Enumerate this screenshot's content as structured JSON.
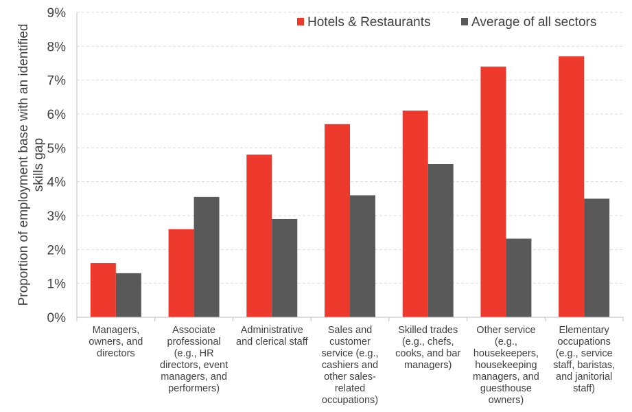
{
  "chart_data": {
    "type": "bar",
    "title": "",
    "ylabel": "Proportion of employment base with an identified skills gap",
    "ylabel_lines": [
      "Proportion of employment base with an identified",
      "skills gap"
    ],
    "xlabel": "",
    "ylim": [
      0,
      9
    ],
    "y_ticks": [
      "0%",
      "1%",
      "2%",
      "3%",
      "4%",
      "5%",
      "6%",
      "7%",
      "8%",
      "9%"
    ],
    "y_tick_values": [
      0,
      1,
      2,
      3,
      4,
      5,
      6,
      7,
      8,
      9
    ],
    "grid": true,
    "legend_position": "top-right",
    "categories": [
      [
        "Managers,",
        "owners, and",
        "directors"
      ],
      [
        "Associate",
        "professional",
        "(e.g., HR",
        "directors, event",
        "managers, and",
        "performers)"
      ],
      [
        "Administrative",
        "and clerical staff"
      ],
      [
        "Sales and",
        "customer",
        "service (e.g.,",
        "cashiers and",
        "other sales-",
        "related",
        "occupations)"
      ],
      [
        "Skilled trades",
        "(e.g., chefs,",
        "cooks, and bar",
        "managers)"
      ],
      [
        "Other service",
        "(e.g.,",
        "housekeepers,",
        "housekeeping",
        "managers, and",
        "guesthouse",
        "owners)"
      ],
      [
        "Elementary",
        "occupations",
        "(e.g., service",
        "staff, baristas,",
        "and janitorial",
        "staff)"
      ]
    ],
    "series": [
      {
        "name": "Hotels & Restaurants",
        "color": "#ee3a2d",
        "values": [
          1.6,
          2.6,
          4.8,
          5.7,
          6.1,
          7.4,
          7.7
        ]
      },
      {
        "name": "Average of all sectors",
        "color": "#595959",
        "values": [
          1.3,
          3.55,
          2.9,
          3.6,
          4.52,
          2.32,
          3.5
        ]
      }
    ]
  }
}
